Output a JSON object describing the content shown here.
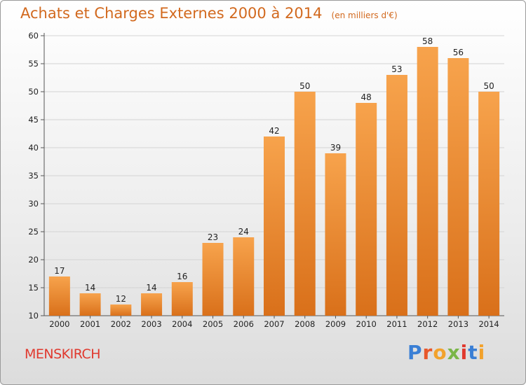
{
  "title": "Achats et Charges Externes 2000 à 2014",
  "unit": "(en milliers d'€)",
  "commune": "MENSKIRCH",
  "brand": {
    "letters": [
      "P",
      "r",
      "o",
      "x",
      "i",
      "t",
      "i"
    ],
    "colors": [
      "#3a7fd5",
      "#e8572a",
      "#f2a22c",
      "#7ab648",
      "#e0392e",
      "#3a7fd5",
      "#f2a22c"
    ]
  },
  "colors": {
    "bar_top": "#f7a34c",
    "bar_bottom": "#d9701a",
    "title": "#d2691e",
    "commune": "#e0392e"
  },
  "chart_data": {
    "type": "bar",
    "title": "Achats et Charges Externes 2000 à 2014",
    "subtitle": "(en milliers d'€)",
    "categories": [
      "2000",
      "2001",
      "2002",
      "2003",
      "2004",
      "2005",
      "2006",
      "2007",
      "2008",
      "2009",
      "2010",
      "2011",
      "2012",
      "2013",
      "2014"
    ],
    "values": [
      17,
      14,
      12,
      14,
      16,
      23,
      24,
      42,
      50,
      39,
      48,
      53,
      58,
      56,
      50
    ],
    "ylim": [
      10,
      60
    ],
    "yticks": [
      10,
      15,
      20,
      25,
      30,
      35,
      40,
      45,
      50,
      55,
      60
    ],
    "grid": true,
    "data_labels": true
  }
}
